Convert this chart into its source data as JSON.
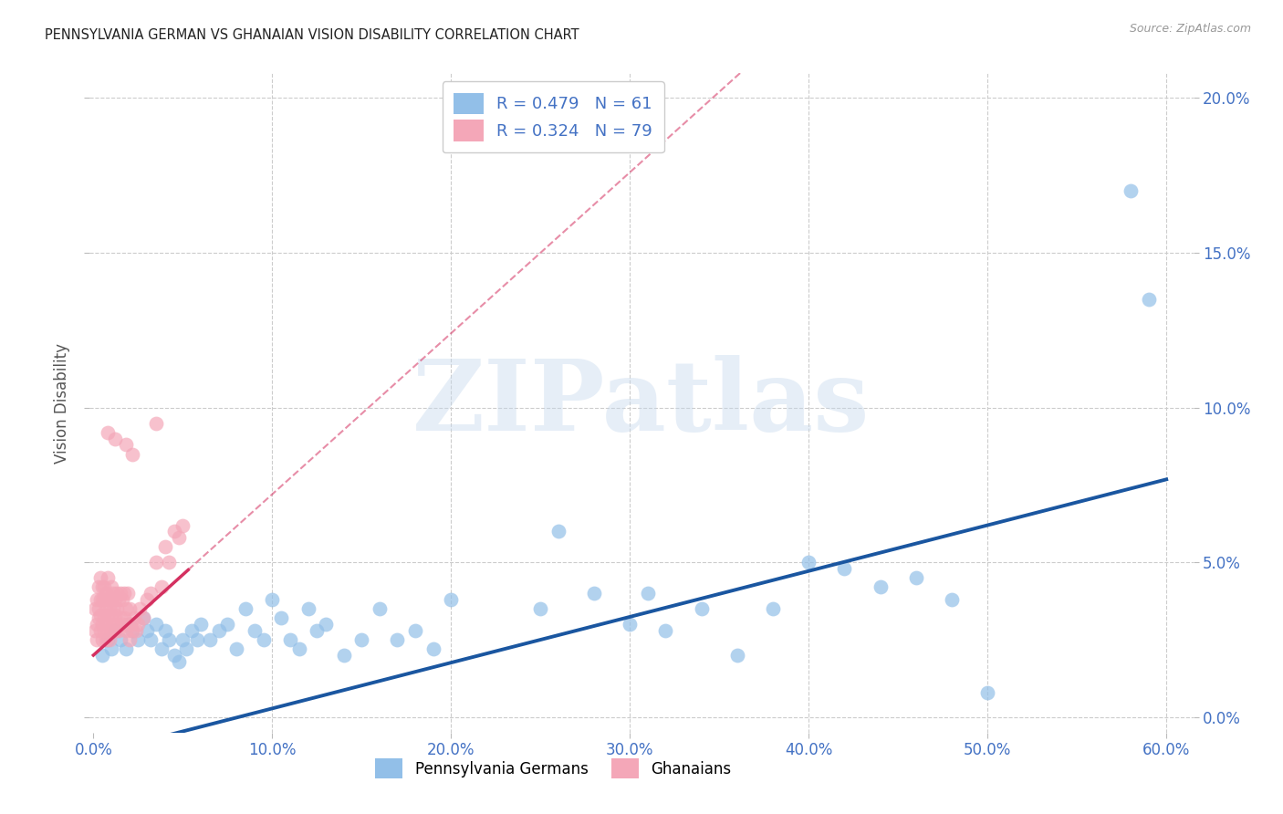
{
  "title": "PENNSYLVANIA GERMAN VS GHANAIAN VISION DISABILITY CORRELATION CHART",
  "source": "Source: ZipAtlas.com",
  "xlabel_blue": "Pennsylvania Germans",
  "xlabel_pink": "Ghanaians",
  "ylabel": "Vision Disability",
  "blue_R": 0.479,
  "blue_N": 61,
  "pink_R": 0.324,
  "pink_N": 79,
  "xlim": [
    -0.002,
    0.615
  ],
  "ylim": [
    -0.005,
    0.208
  ],
  "xticks": [
    0.0,
    0.1,
    0.2,
    0.3,
    0.4,
    0.5,
    0.6
  ],
  "yticks": [
    0.0,
    0.05,
    0.1,
    0.15,
    0.2
  ],
  "blue_color": "#92bfe8",
  "pink_color": "#f4a7b8",
  "blue_line_color": "#1a56a0",
  "pink_line_color": "#d43060",
  "axis_color": "#4472c4",
  "grid_color": "#cccccc",
  "background_color": "#ffffff",
  "title_color": "#222222",
  "watermark": "ZIPatlas",
  "blue_intercept": -0.012,
  "blue_slope": 0.148,
  "pink_intercept": 0.02,
  "pink_slope": 0.52,
  "pink_line_end": 0.053,
  "blue_scatter_x": [
    0.005,
    0.008,
    0.01,
    0.012,
    0.015,
    0.018,
    0.02,
    0.022,
    0.025,
    0.028,
    0.03,
    0.032,
    0.035,
    0.038,
    0.04,
    0.042,
    0.045,
    0.048,
    0.05,
    0.052,
    0.055,
    0.058,
    0.06,
    0.065,
    0.07,
    0.075,
    0.08,
    0.085,
    0.09,
    0.095,
    0.1,
    0.105,
    0.11,
    0.115,
    0.12,
    0.125,
    0.13,
    0.14,
    0.15,
    0.16,
    0.17,
    0.18,
    0.19,
    0.2,
    0.25,
    0.26,
    0.28,
    0.3,
    0.31,
    0.32,
    0.34,
    0.36,
    0.38,
    0.4,
    0.42,
    0.44,
    0.46,
    0.48,
    0.5,
    0.58,
    0.59
  ],
  "blue_scatter_y": [
    0.02,
    0.025,
    0.022,
    0.028,
    0.025,
    0.022,
    0.03,
    0.028,
    0.025,
    0.032,
    0.028,
    0.025,
    0.03,
    0.022,
    0.028,
    0.025,
    0.02,
    0.018,
    0.025,
    0.022,
    0.028,
    0.025,
    0.03,
    0.025,
    0.028,
    0.03,
    0.022,
    0.035,
    0.028,
    0.025,
    0.038,
    0.032,
    0.025,
    0.022,
    0.035,
    0.028,
    0.03,
    0.02,
    0.025,
    0.035,
    0.025,
    0.028,
    0.022,
    0.038,
    0.035,
    0.06,
    0.04,
    0.03,
    0.04,
    0.028,
    0.035,
    0.02,
    0.035,
    0.05,
    0.048,
    0.042,
    0.045,
    0.038,
    0.008,
    0.17,
    0.135
  ],
  "pink_scatter_x": [
    0.001,
    0.001,
    0.002,
    0.002,
    0.002,
    0.003,
    0.003,
    0.003,
    0.004,
    0.004,
    0.004,
    0.004,
    0.005,
    0.005,
    0.005,
    0.005,
    0.006,
    0.006,
    0.006,
    0.006,
    0.007,
    0.007,
    0.007,
    0.007,
    0.008,
    0.008,
    0.008,
    0.008,
    0.009,
    0.009,
    0.009,
    0.01,
    0.01,
    0.01,
    0.01,
    0.011,
    0.011,
    0.011,
    0.012,
    0.012,
    0.012,
    0.013,
    0.013,
    0.013,
    0.014,
    0.014,
    0.015,
    0.015,
    0.016,
    0.016,
    0.017,
    0.017,
    0.018,
    0.018,
    0.019,
    0.019,
    0.02,
    0.02,
    0.021,
    0.022,
    0.023,
    0.024,
    0.025,
    0.026,
    0.028,
    0.03,
    0.032,
    0.035,
    0.038,
    0.04,
    0.042,
    0.045,
    0.048,
    0.05,
    0.012,
    0.018,
    0.022,
    0.008,
    0.035
  ],
  "pink_scatter_y": [
    0.028,
    0.035,
    0.03,
    0.038,
    0.025,
    0.032,
    0.035,
    0.042,
    0.028,
    0.033,
    0.038,
    0.045,
    0.025,
    0.03,
    0.038,
    0.042,
    0.028,
    0.033,
    0.038,
    0.042,
    0.025,
    0.03,
    0.035,
    0.04,
    0.028,
    0.033,
    0.038,
    0.045,
    0.025,
    0.03,
    0.035,
    0.028,
    0.033,
    0.038,
    0.042,
    0.03,
    0.035,
    0.04,
    0.028,
    0.033,
    0.038,
    0.03,
    0.035,
    0.04,
    0.028,
    0.038,
    0.032,
    0.04,
    0.03,
    0.038,
    0.032,
    0.04,
    0.028,
    0.035,
    0.03,
    0.04,
    0.025,
    0.035,
    0.03,
    0.028,
    0.032,
    0.028,
    0.03,
    0.035,
    0.032,
    0.038,
    0.04,
    0.05,
    0.042,
    0.055,
    0.05,
    0.06,
    0.058,
    0.062,
    0.09,
    0.088,
    0.085,
    0.092,
    0.095
  ]
}
